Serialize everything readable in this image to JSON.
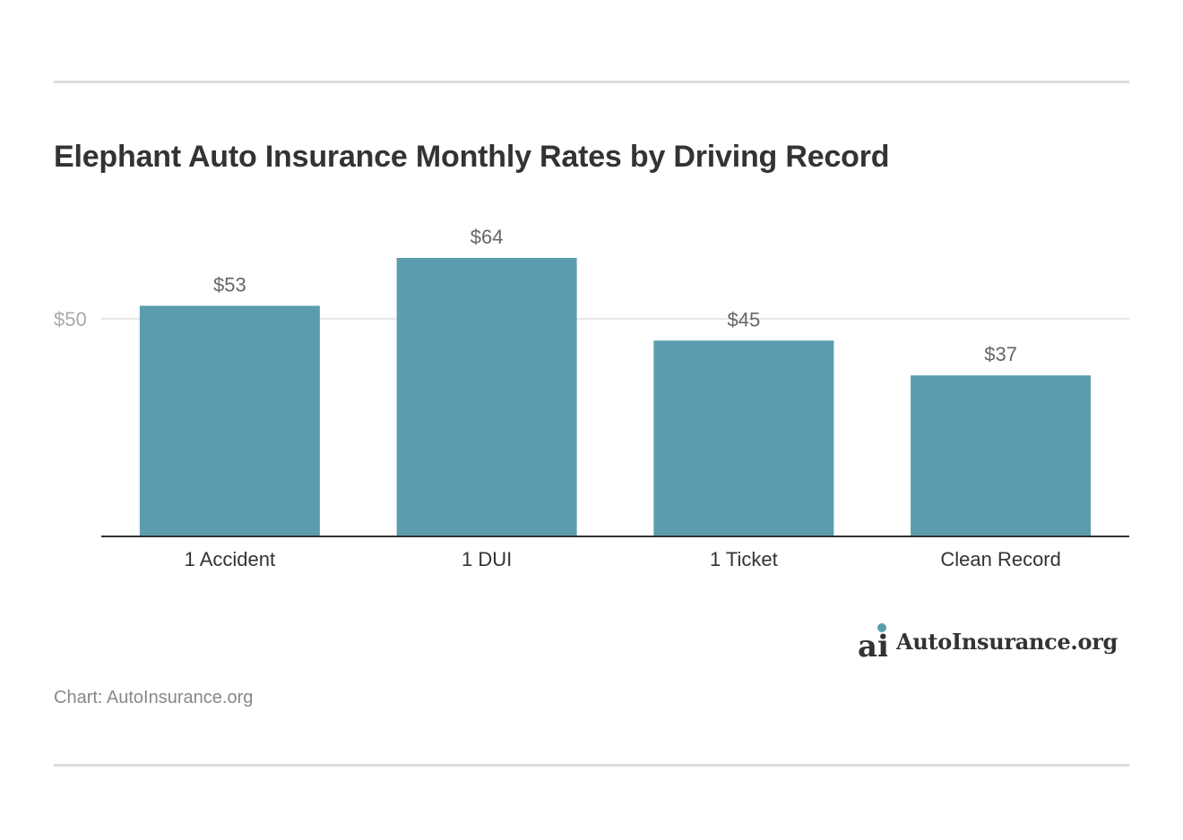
{
  "title": "Elephant Auto Insurance Monthly Rates by Driving Record",
  "source": "Chart: AutoInsurance.org",
  "logo": {
    "text": "AutoInsurance.org",
    "mark": "ai"
  },
  "colors": {
    "bar": "#5b9dae",
    "axis": "#333333",
    "grid": "#dddddd",
    "tick_label": "#aaaaaa",
    "value_label": "#666666",
    "category_label": "#333333",
    "logo_dot": "#5b9dae"
  },
  "chart_data": {
    "type": "bar",
    "title": "Elephant Auto Insurance Monthly Rates by Driving Record",
    "categories": [
      "1 Accident",
      "1 DUI",
      "1 Ticket",
      "Clean Record"
    ],
    "values": [
      53,
      64,
      45,
      37
    ],
    "value_labels": [
      "$53",
      "$64",
      "$45",
      "$37"
    ],
    "yticks": [
      50
    ],
    "ytick_labels": [
      "$50"
    ],
    "ylim": [
      0,
      64
    ],
    "xlabel": "",
    "ylabel": "",
    "grid": true,
    "legend": "none"
  }
}
